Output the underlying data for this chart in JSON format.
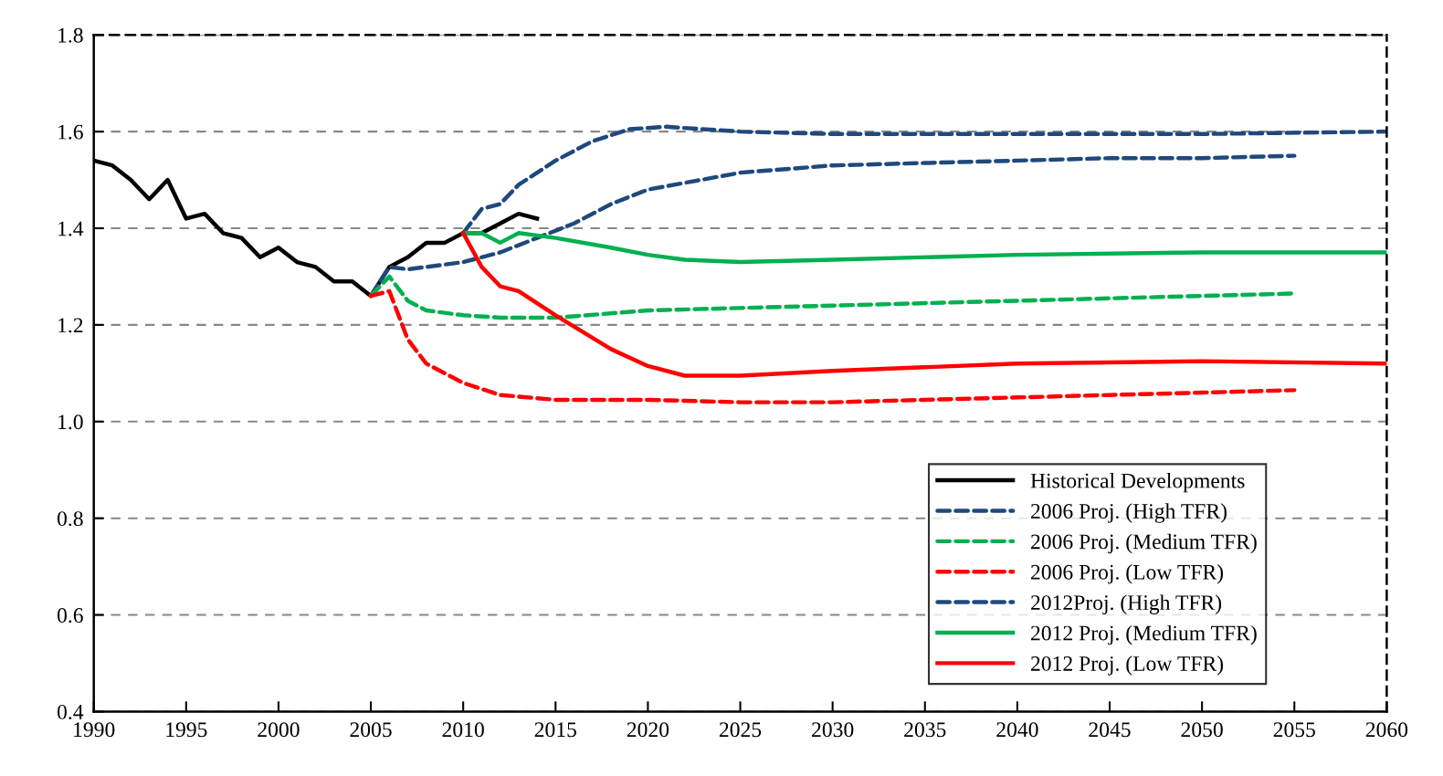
{
  "chart_data": {
    "type": "line",
    "xlim": [
      1990,
      2060
    ],
    "xticks": [
      1990,
      1995,
      2000,
      2005,
      2010,
      2015,
      2020,
      2025,
      2030,
      2035,
      2040,
      2045,
      2050,
      2055,
      2060
    ],
    "ylim": [
      0.4,
      1.8
    ],
    "yticks": [
      0.4,
      0.6,
      0.8,
      {
        "value": 1.0,
        "label": "1.0"
      },
      1.2,
      1.4,
      1.6,
      1.8
    ],
    "grid": "y",
    "legend": "bottom right",
    "marker": "none",
    "series": [
      {
        "name": "Historical Developments",
        "color": "#000000",
        "line_style": "solid",
        "x": [
          1990,
          1991,
          1992,
          1993,
          1994,
          1995,
          1996,
          1997,
          1998,
          1999,
          2000,
          2001,
          2002,
          2003,
          2004,
          2005,
          2006,
          2007,
          2008,
          2009,
          2010,
          2011,
          2012,
          2013,
          2014
        ],
        "values": [
          1.54,
          1.53,
          1.5,
          1.46,
          1.5,
          1.42,
          1.43,
          1.39,
          1.38,
          1.34,
          1.36,
          1.33,
          1.32,
          1.29,
          1.29,
          1.26,
          1.32,
          1.34,
          1.37,
          1.37,
          1.39,
          1.39,
          1.41,
          1.43,
          1.42
        ]
      },
      {
        "name": "2006 Proj. (High TFR)",
        "color": "#1f497d",
        "line_style": "dashed",
        "x": [
          2005,
          2006,
          2007,
          2008,
          2010,
          2012,
          2014,
          2016,
          2018,
          2020,
          2025,
          2030,
          2035,
          2040,
          2045,
          2050,
          2055
        ],
        "values": [
          1.26,
          1.32,
          1.315,
          1.32,
          1.33,
          1.35,
          1.38,
          1.41,
          1.45,
          1.48,
          1.515,
          1.53,
          1.535,
          1.54,
          1.545,
          1.545,
          1.55
        ]
      },
      {
        "name": "2006 Proj. (Medium TFR)",
        "color": "#00b050",
        "line_style": "dashed",
        "x": [
          2005,
          2006,
          2007,
          2008,
          2010,
          2012,
          2015,
          2020,
          2025,
          2030,
          2035,
          2040,
          2045,
          2050,
          2055
        ],
        "values": [
          1.26,
          1.3,
          1.25,
          1.23,
          1.22,
          1.215,
          1.215,
          1.23,
          1.235,
          1.24,
          1.245,
          1.25,
          1.255,
          1.26,
          1.265
        ]
      },
      {
        "name": "2006 Proj. (Low TFR)",
        "color": "#ff0000",
        "line_style": "dashed",
        "x": [
          2005,
          2006,
          2007,
          2008,
          2010,
          2012,
          2015,
          2020,
          2025,
          2030,
          2035,
          2040,
          2045,
          2050,
          2055
        ],
        "values": [
          1.26,
          1.27,
          1.17,
          1.12,
          1.08,
          1.055,
          1.045,
          1.045,
          1.04,
          1.04,
          1.045,
          1.05,
          1.055,
          1.06,
          1.065
        ]
      },
      {
        "name": "2012Proj. (High TFR)",
        "color": "#1f497d",
        "line_style": "dashed",
        "x": [
          2010,
          2011,
          2012,
          2013,
          2015,
          2017,
          2019,
          2021,
          2025,
          2030,
          2040,
          2050,
          2060
        ],
        "values": [
          1.39,
          1.44,
          1.45,
          1.49,
          1.54,
          1.58,
          1.605,
          1.61,
          1.6,
          1.595,
          1.595,
          1.595,
          1.6
        ]
      },
      {
        "name": "2012 Proj. (Medium TFR)",
        "color": "#00b050",
        "line_style": "solid",
        "x": [
          2010,
          2011,
          2012,
          2013,
          2015,
          2018,
          2020,
          2022,
          2025,
          2030,
          2040,
          2050,
          2060
        ],
        "values": [
          1.39,
          1.39,
          1.37,
          1.39,
          1.38,
          1.36,
          1.345,
          1.335,
          1.33,
          1.335,
          1.345,
          1.35,
          1.35
        ]
      },
      {
        "name": "2012 Proj. (Low TFR)",
        "color": "#ff0000",
        "line_style": "solid",
        "x": [
          2010,
          2011,
          2012,
          2013,
          2015,
          2018,
          2020,
          2022,
          2025,
          2030,
          2040,
          2050,
          2060
        ],
        "values": [
          1.39,
          1.32,
          1.28,
          1.27,
          1.22,
          1.15,
          1.115,
          1.095,
          1.095,
          1.105,
          1.12,
          1.125,
          1.12
        ]
      }
    ]
  }
}
